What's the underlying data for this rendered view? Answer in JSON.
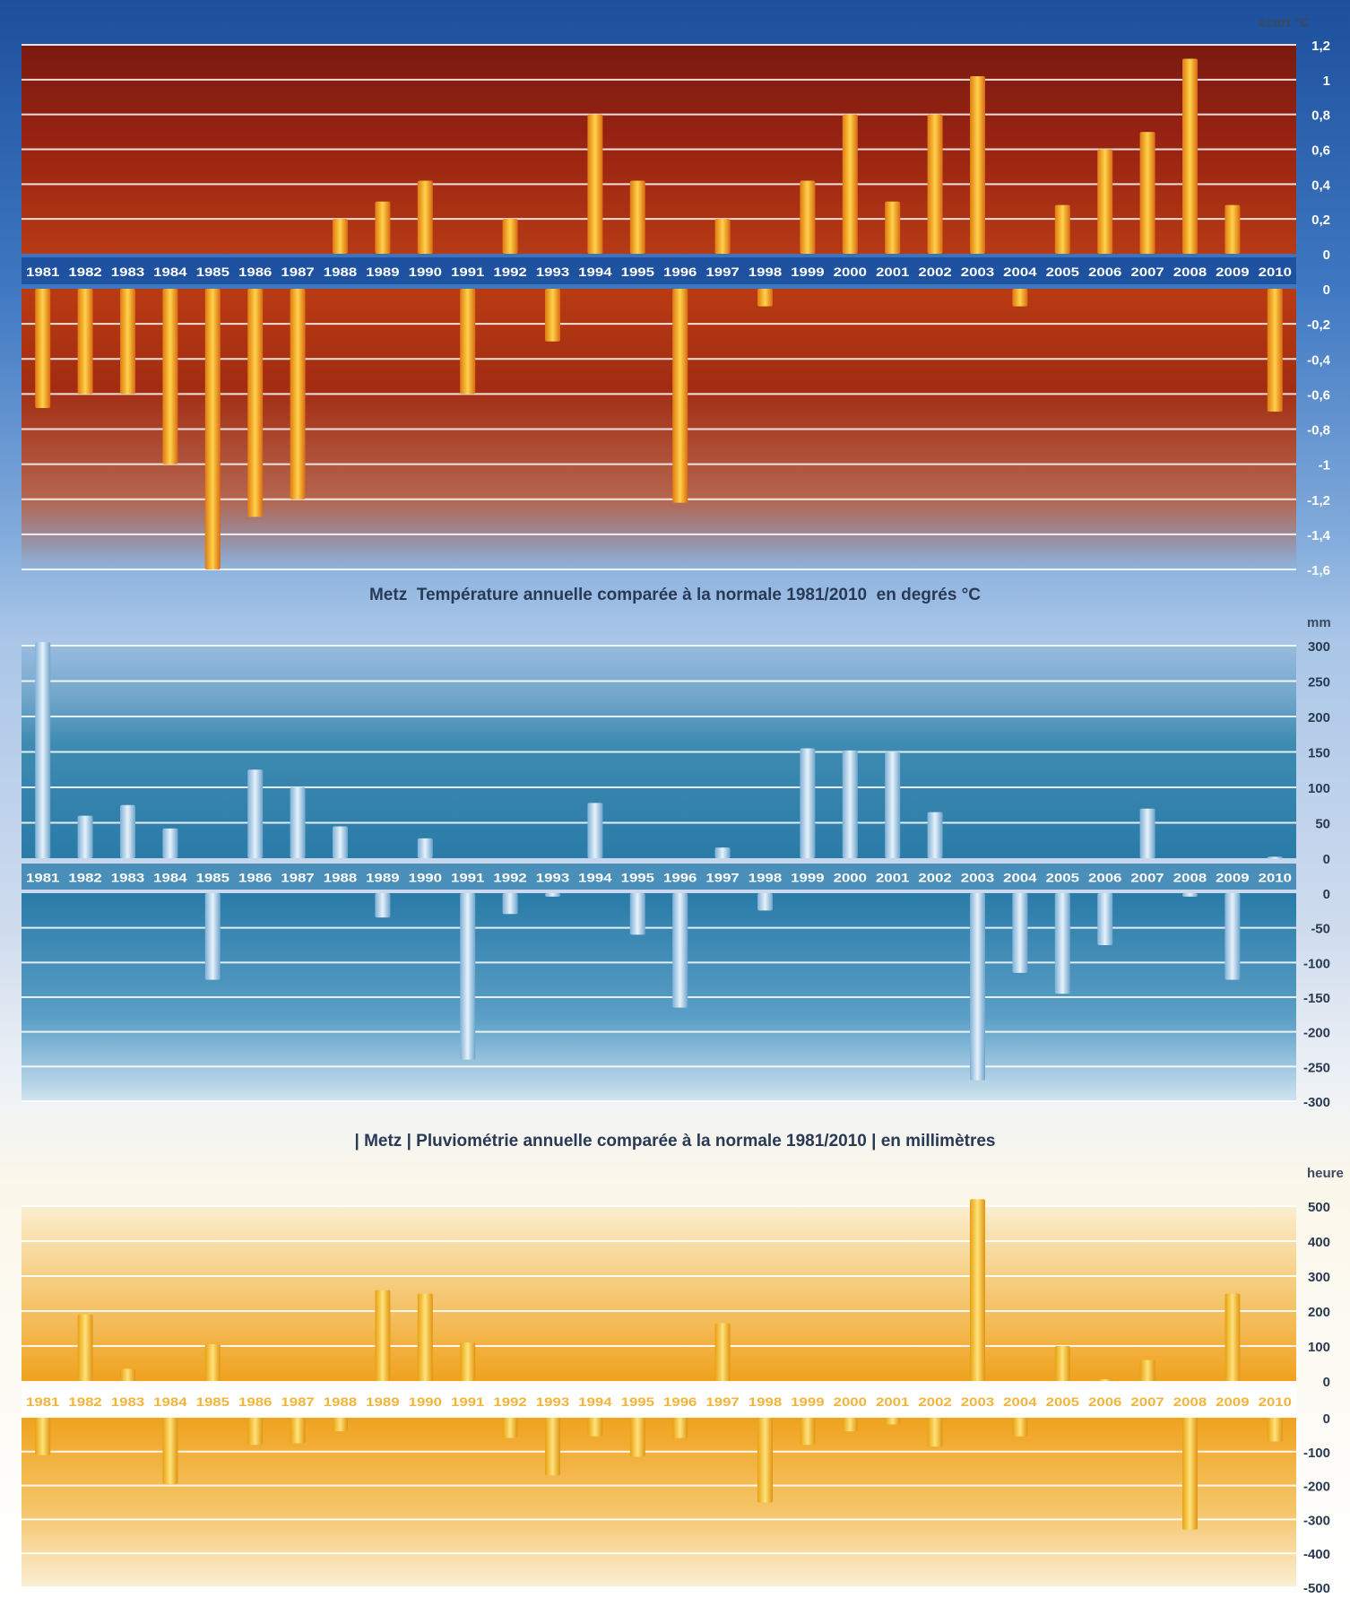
{
  "chart_data": [
    {
      "type": "bar",
      "unit": "écart °C",
      "ylim": [
        -1.6,
        1.2
      ],
      "yticks": [
        "1,2",
        "1",
        "0,8",
        "0,6",
        "0,4",
        "0,2",
        "0",
        "0",
        "-0,2",
        "-0,4",
        "-0,6",
        "-0,8",
        "-1",
        "-1,2",
        "-1,4",
        "-1,6"
      ],
      "categories": [
        "1981",
        "1982",
        "1983",
        "1984",
        "1985",
        "1986",
        "1987",
        "1988",
        "1989",
        "1990",
        "1991",
        "1992",
        "1993",
        "1994",
        "1995",
        "1996",
        "1997",
        "1998",
        "1999",
        "2000",
        "2001",
        "2002",
        "2003",
        "2004",
        "2005",
        "2006",
        "2007",
        "2008",
        "2009",
        "2010"
      ],
      "values": [
        -0.68,
        -0.6,
        -0.6,
        -1.0,
        -1.6,
        -1.3,
        -1.2,
        0.2,
        0.3,
        0.42,
        -0.6,
        0.2,
        -0.3,
        0.8,
        0.42,
        -1.22,
        0.2,
        -0.1,
        0.42,
        0.8,
        0.3,
        0.8,
        1.02,
        -0.1,
        0.28,
        0.6,
        0.7,
        1.12,
        0.28,
        -0.7
      ],
      "title": "Metz  Température annuelle comparée à la normale 1981/2010  en degrés °C",
      "bar_color": "#f0a020"
    },
    {
      "type": "bar",
      "unit": "mm",
      "ylim": [
        -300,
        300
      ],
      "yticks": [
        "300",
        "250",
        "200",
        "150",
        "100",
        "50",
        "0",
        "0",
        "-50",
        "-100",
        "-150",
        "-200",
        "-250",
        "-300"
      ],
      "categories": [
        "1981",
        "1982",
        "1983",
        "1984",
        "1985",
        "1986",
        "1987",
        "1988",
        "1989",
        "1990",
        "1991",
        "1992",
        "1993",
        "1994",
        "1995",
        "1996",
        "1997",
        "1998",
        "1999",
        "2000",
        "2001",
        "2002",
        "2003",
        "2004",
        "2005",
        "2006",
        "2007",
        "2008",
        "2009",
        "2010"
      ],
      "values": [
        305,
        60,
        75,
        42,
        -125,
        125,
        100,
        45,
        -35,
        28,
        -240,
        -30,
        -5,
        78,
        -60,
        -165,
        15,
        -25,
        155,
        152,
        150,
        65,
        -270,
        -115,
        -145,
        -75,
        70,
        -5,
        -125,
        2
      ],
      "title": "| Metz | Pluviométrie annuelle comparée à la normale 1981/2010 | en millimètres",
      "bar_color": "#a9cbe6"
    },
    {
      "type": "bar",
      "unit": "heure",
      "ylim": [
        -500,
        500
      ],
      "yticks": [
        "500",
        "400",
        "300",
        "200",
        "100",
        "0",
        "0",
        "-100",
        "-200",
        "-300",
        "-400",
        "-500"
      ],
      "categories": [
        "1981",
        "1982",
        "1983",
        "1984",
        "1985",
        "1986",
        "1987",
        "1988",
        "1989",
        "1990",
        "1991",
        "1992",
        "1993",
        "1994",
        "1995",
        "1996",
        "1997",
        "1998",
        "1999",
        "2000",
        "2001",
        "2002",
        "2003",
        "2004",
        "2005",
        "2006",
        "2007",
        "2008",
        "2009",
        "2010"
      ],
      "values": [
        -110,
        190,
        35,
        -195,
        105,
        -80,
        -75,
        -40,
        260,
        250,
        110,
        -60,
        -170,
        -55,
        -115,
        -60,
        165,
        -250,
        -80,
        -40,
        -20,
        -85,
        520,
        -55,
        100,
        5,
        60,
        -330,
        250,
        -70
      ],
      "title": "",
      "bar_color": "#f6c018"
    }
  ]
}
